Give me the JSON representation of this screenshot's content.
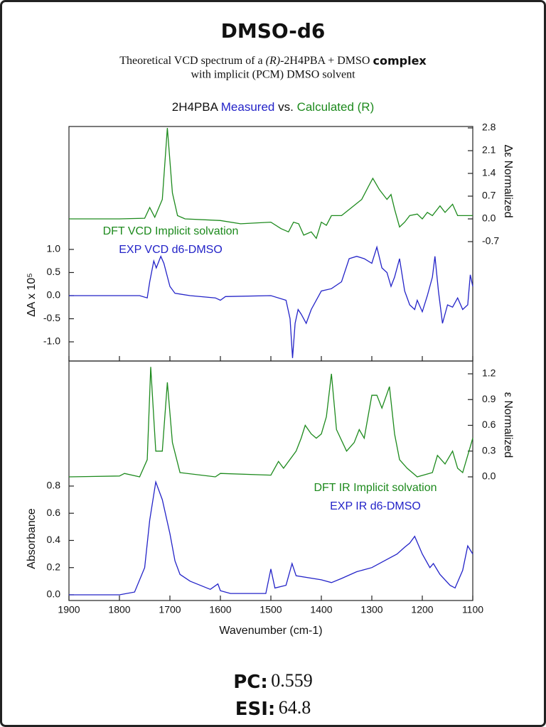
{
  "header": {
    "title": "DMSO-d6",
    "subtitle_line1": [
      "Theoretical VCD spectrum of a ",
      "(R)",
      "-2H4PBA + DMSO ",
      "complex"
    ],
    "subtitle_line2": "with implicit (PCM) DMSO solvent",
    "chart_heading": [
      "2H4PBA",
      "Measured",
      "vs.",
      "Calculated (R)"
    ]
  },
  "chart_data": [
    {
      "type": "line",
      "ylabel": "ΔA x 10⁵",
      "y2label": "Δε Normalized",
      "xlim": [
        1900,
        1100
      ],
      "ylim": [
        -1.415,
        3.66
      ],
      "yticks": [
        {
          "value": 1.0,
          "label": "1.0"
        },
        0.5,
        {
          "value": 0,
          "label": "0.0"
        },
        -0.5,
        {
          "value": -1.0,
          "label": "-1.0"
        }
      ],
      "y2lim": [
        -4.375,
        2.844
      ],
      "y2ticks": [
        2.8,
        2.1,
        1.4,
        0.7,
        {
          "value": 0,
          "label": "0.0"
        },
        -0.7
      ],
      "series": [
        {
          "name": "DFT VCD Implicit solvation",
          "color": "#1d8a1d",
          "axis": "y2",
          "x": [
            1900,
            1800,
            1750,
            1740,
            1730,
            1715,
            1705,
            1695,
            1685,
            1670,
            1600,
            1560,
            1500,
            1480,
            1465,
            1455,
            1445,
            1435,
            1420,
            1410,
            1400,
            1390,
            1380,
            1360,
            1340,
            1320,
            1305,
            1298,
            1285,
            1270,
            1262,
            1255,
            1245,
            1235,
            1225,
            1210,
            1200,
            1190,
            1180,
            1165,
            1155,
            1140,
            1130,
            1100
          ],
          "values": [
            0,
            0,
            0.02,
            0.35,
            0.05,
            0.6,
            2.8,
            0.8,
            0.1,
            0,
            -0.05,
            -0.15,
            -0.1,
            -0.3,
            -0.4,
            -0.1,
            -0.15,
            -0.5,
            -0.4,
            -0.6,
            -0.1,
            -0.2,
            0.1,
            0.1,
            0.35,
            0.6,
            1.05,
            1.25,
            0.9,
            0.6,
            0.75,
            0.3,
            -0.25,
            -0.1,
            0.1,
            0.15,
            0,
            0.2,
            0.1,
            0.4,
            0.2,
            0.45,
            0.1,
            0.1
          ]
        },
        {
          "name": "EXP VCD d6-DMSO",
          "color": "#2323c8",
          "x": [
            1900,
            1800,
            1760,
            1745,
            1740,
            1732,
            1727,
            1718,
            1712,
            1700,
            1690,
            1660,
            1610,
            1600,
            1590,
            1500,
            1470,
            1462,
            1457,
            1452,
            1446,
            1440,
            1430,
            1420,
            1400,
            1380,
            1360,
            1345,
            1330,
            1315,
            1300,
            1290,
            1280,
            1270,
            1262,
            1255,
            1245,
            1235,
            1225,
            1215,
            1210,
            1200,
            1190,
            1180,
            1175,
            1168,
            1160,
            1150,
            1140,
            1130,
            1120,
            1110,
            1105,
            1100
          ],
          "values": [
            0,
            0,
            0,
            -0.05,
            0.3,
            0.75,
            0.6,
            0.85,
            0.7,
            0.2,
            0.05,
            0,
            -0.05,
            -0.1,
            -0.02,
            0,
            -0.1,
            -0.5,
            -1.35,
            -0.6,
            -0.3,
            -0.4,
            -0.6,
            -0.3,
            0.1,
            0.15,
            0.3,
            0.8,
            0.85,
            0.8,
            0.7,
            1.05,
            0.6,
            0.5,
            0.2,
            0.4,
            0.8,
            0.1,
            -0.2,
            -0.3,
            -0.1,
            -0.35,
            0,
            0.4,
            0.85,
            0.1,
            -0.6,
            -0.2,
            -0.25,
            -0.05,
            -0.3,
            -0.2,
            0.45,
            0.2
          ]
        }
      ]
    },
    {
      "type": "line",
      "xlabel": "Wavenumber (cm-1)",
      "ylabel": "Absorbance",
      "y2label": "ε Normalized",
      "xlim": [
        1900,
        1100
      ],
      "xticks": [
        1900,
        1800,
        1700,
        1600,
        1500,
        1400,
        1300,
        1200,
        1100
      ],
      "ylim": [
        -0.042,
        1.72
      ],
      "yticks": [
        {
          "value": 0,
          "label": "0.0"
        },
        0.2,
        0.4,
        0.6,
        0.8
      ],
      "y2lim": [
        -1.44,
        1.349
      ],
      "y2ticks": [
        {
          "value": 0,
          "label": "0.0"
        },
        0.3,
        0.6,
        0.9,
        1.2
      ],
      "series": [
        {
          "name": "DFT IR Implicit solvation",
          "color": "#1d8a1d",
          "axis": "y2",
          "x": [
            1900,
            1800,
            1790,
            1760,
            1745,
            1738,
            1728,
            1715,
            1705,
            1695,
            1680,
            1610,
            1600,
            1500,
            1485,
            1475,
            1450,
            1440,
            1432,
            1420,
            1410,
            1400,
            1390,
            1380,
            1370,
            1350,
            1335,
            1325,
            1315,
            1300,
            1290,
            1280,
            1265,
            1255,
            1245,
            1230,
            1210,
            1180,
            1170,
            1155,
            1140,
            1130,
            1120,
            1100
          ],
          "values": [
            0,
            0.01,
            0.04,
            0,
            0.2,
            1.28,
            0.3,
            0.3,
            1.1,
            0.4,
            0.05,
            0,
            0.04,
            0.02,
            0.18,
            0.1,
            0.3,
            0.45,
            0.6,
            0.5,
            0.45,
            0.5,
            0.7,
            1.2,
            0.55,
            0.3,
            0.4,
            0.55,
            0.45,
            0.95,
            0.95,
            0.8,
            1.05,
            0.5,
            0.2,
            0.1,
            0,
            0.05,
            0.25,
            0.15,
            0.3,
            0.1,
            0.05,
            0.45
          ]
        },
        {
          "name": "EXP IR d6-DMSO",
          "color": "#2323c8",
          "x": [
            1900,
            1800,
            1770,
            1750,
            1740,
            1728,
            1715,
            1700,
            1690,
            1680,
            1660,
            1620,
            1605,
            1600,
            1580,
            1510,
            1500,
            1492,
            1470,
            1458,
            1450,
            1400,
            1380,
            1360,
            1330,
            1300,
            1270,
            1250,
            1235,
            1225,
            1215,
            1200,
            1185,
            1178,
            1165,
            1145,
            1135,
            1120,
            1110,
            1100
          ],
          "values": [
            0,
            0,
            0.02,
            0.2,
            0.55,
            0.83,
            0.7,
            0.45,
            0.25,
            0.15,
            0.1,
            0.04,
            0.08,
            0.03,
            0.01,
            0.01,
            0.19,
            0.05,
            0.07,
            0.23,
            0.14,
            0.11,
            0.09,
            0.12,
            0.17,
            0.2,
            0.26,
            0.3,
            0.35,
            0.38,
            0.43,
            0.3,
            0.2,
            0.23,
            0.15,
            0.07,
            0.05,
            0.18,
            0.36,
            0.3
          ]
        }
      ]
    }
  ],
  "footer": {
    "pc_label": "PC:",
    "pc": 0.559,
    "esi_label": "ESI:",
    "esi": 64.8
  }
}
